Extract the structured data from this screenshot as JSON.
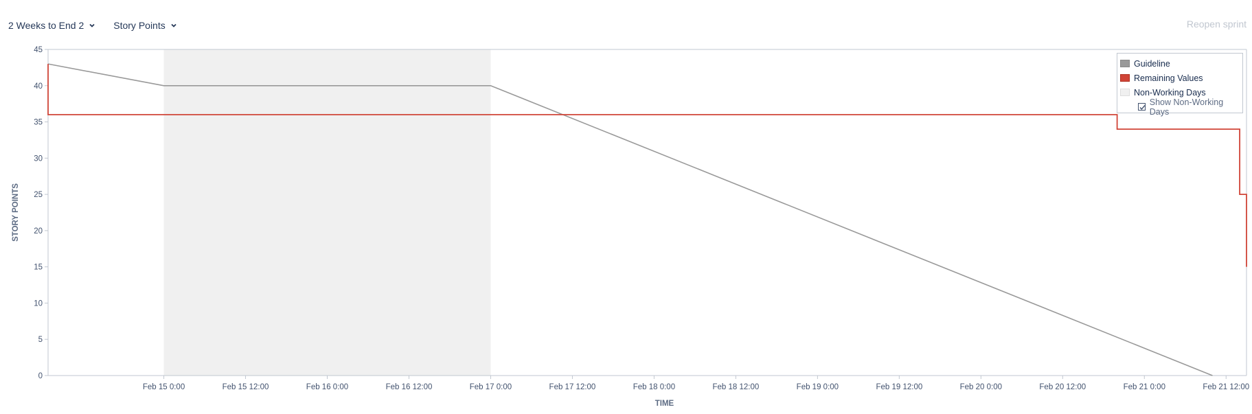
{
  "toolbar": {
    "sprint_selector": "2 Weeks to End 2",
    "estimate_selector": "Story Points",
    "reopen_label": "Reopen sprint"
  },
  "legend": {
    "guideline": "Guideline",
    "remaining": "Remaining Values",
    "non_working": "Non-Working Days",
    "show_non_working": "Show Non-Working Days",
    "show_non_working_checked": true
  },
  "colors": {
    "guideline": "#999999",
    "remaining": "#d04437",
    "non_working": "#f0f0f0",
    "axis": "#c1c7d0",
    "text": "#42526e"
  },
  "chart_data": {
    "type": "line",
    "xlabel": "TIME",
    "ylabel": "STORY POINTS",
    "ylim": [
      0,
      45
    ],
    "y_ticks": [
      0,
      5,
      10,
      15,
      20,
      25,
      30,
      35,
      40,
      45
    ],
    "x_range": [
      "2024-02-14T07:00",
      "2024-02-21T15:00"
    ],
    "x_ticks": [
      {
        "t": "2024-02-15T00:00",
        "label": "Feb 15 0:00"
      },
      {
        "t": "2024-02-15T12:00",
        "label": "Feb 15 12:00"
      },
      {
        "t": "2024-02-16T00:00",
        "label": "Feb 16 0:00"
      },
      {
        "t": "2024-02-16T12:00",
        "label": "Feb 16 12:00"
      },
      {
        "t": "2024-02-17T00:00",
        "label": "Feb 17 0:00"
      },
      {
        "t": "2024-02-17T12:00",
        "label": "Feb 17 12:00"
      },
      {
        "t": "2024-02-18T00:00",
        "label": "Feb 18 0:00"
      },
      {
        "t": "2024-02-18T12:00",
        "label": "Feb 18 12:00"
      },
      {
        "t": "2024-02-19T00:00",
        "label": "Feb 19 0:00"
      },
      {
        "t": "2024-02-19T12:00",
        "label": "Feb 19 12:00"
      },
      {
        "t": "2024-02-20T00:00",
        "label": "Feb 20 0:00"
      },
      {
        "t": "2024-02-20T12:00",
        "label": "Feb 20 12:00"
      },
      {
        "t": "2024-02-21T00:00",
        "label": "Feb 21 0:00"
      },
      {
        "t": "2024-02-21T12:00",
        "label": "Feb 21 12:00"
      }
    ],
    "non_working": [
      {
        "start": "2024-02-15T00:00",
        "end": "2024-02-17T00:00"
      }
    ],
    "series": [
      {
        "name": "Guideline",
        "points": [
          {
            "t": "2024-02-14T07:00",
            "y": 43
          },
          {
            "t": "2024-02-15T00:00",
            "y": 40
          },
          {
            "t": "2024-02-17T00:00",
            "y": 40
          },
          {
            "t": "2024-02-21T10:00",
            "y": 0
          }
        ]
      },
      {
        "name": "Remaining Values",
        "step": true,
        "points": [
          {
            "t": "2024-02-14T07:00",
            "y": 43
          },
          {
            "t": "2024-02-14T07:00",
            "y": 36
          },
          {
            "t": "2024-02-20T20:00",
            "y": 34
          },
          {
            "t": "2024-02-21T14:00",
            "y": 25
          },
          {
            "t": "2024-02-21T15:00",
            "y": 15
          }
        ]
      }
    ],
    "grid": false,
    "legend_position": "top-right"
  }
}
